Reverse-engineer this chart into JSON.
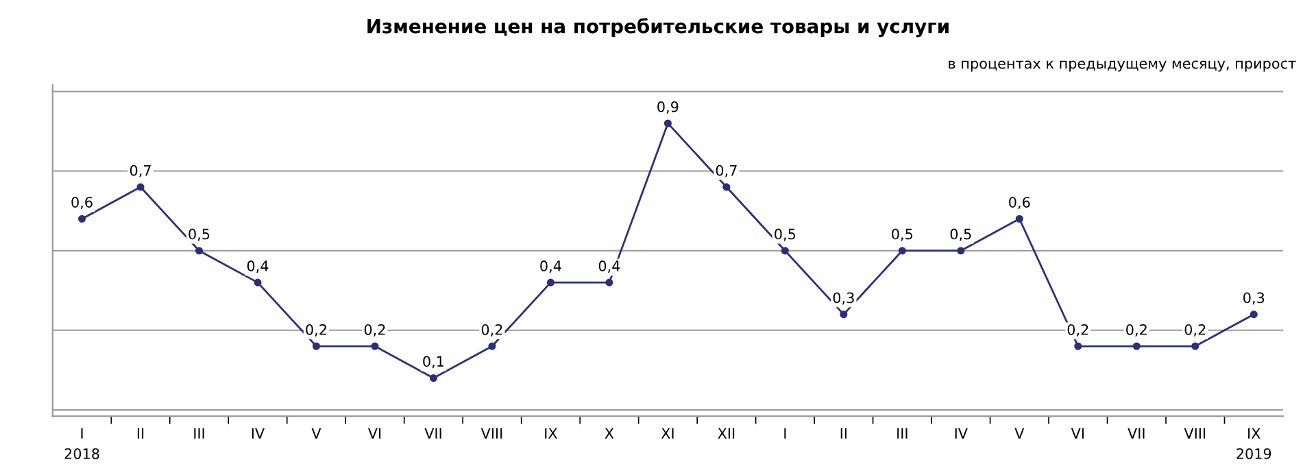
{
  "chart_data": {
    "type": "line",
    "title": "Изменение цен на потребительские товары и услуги",
    "subtitle": "в процентах к предыдущему месяцу, прирост",
    "categories": [
      "I\n2018",
      "II",
      "III",
      "IV",
      "V",
      "VI",
      "VII",
      "VIII",
      "IX",
      "X",
      "XI",
      "XII",
      "I",
      "II",
      "III",
      "IV",
      "V",
      "VI",
      "VII",
      "VIII",
      "IX\n2019"
    ],
    "series": [
      {
        "color": "#2b2f7a",
        "values": [
          0.6,
          0.7,
          0.5,
          0.4,
          0.2,
          0.2,
          0.1,
          0.2,
          0.4,
          0.4,
          0.9,
          0.7,
          0.5,
          0.3,
          0.5,
          0.5,
          0.6,
          0.2,
          0.2,
          0.2,
          0.3
        ],
        "value_labels": [
          "0,6",
          "0,7",
          "0,5",
          "0,4",
          "0,2",
          "0,2",
          "0,1",
          "0,2",
          "0,4",
          "0,4",
          "0,9",
          "0,7",
          "0,5",
          "0,3",
          "0,5",
          "0,5",
          "0,6",
          "0,2",
          "0,2",
          "0,2",
          "0,3"
        ]
      }
    ],
    "tick_labels": "x",
    "grid": "y",
    "marker": "circle",
    "line_style": "solid"
  }
}
